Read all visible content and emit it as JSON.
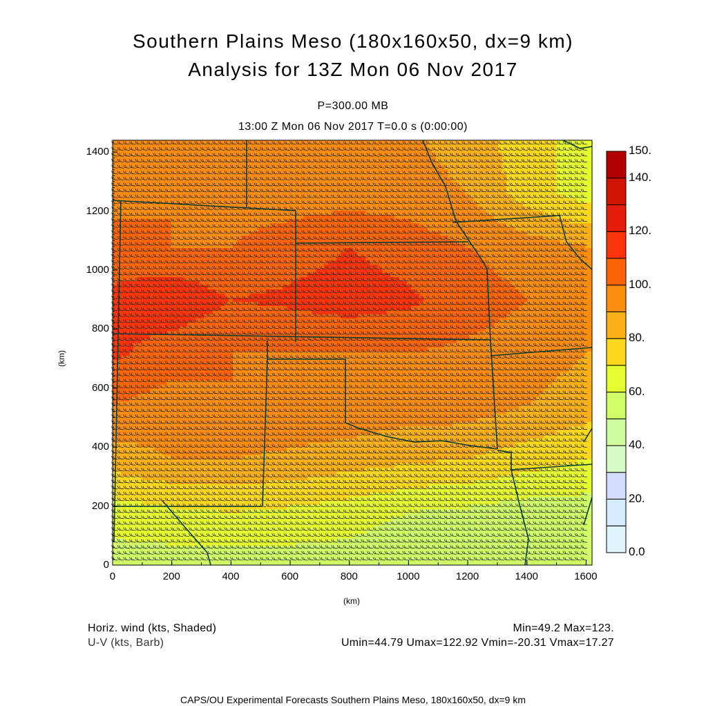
{
  "title": {
    "line1": "Southern Plains Meso (180x160x50, dx=9 km)",
    "line2": "Analysis for 13Z Mon 06 Nov 2017",
    "level": "P=300.00 MB",
    "time": "13:00 Z Mon 06 Nov 2017    T=0.0 s (0:00:00)"
  },
  "axes": {
    "xlabel": "(km)",
    "ylabel": "(km)",
    "xticks": [
      "0",
      "200",
      "400",
      "600",
      "800",
      "1000",
      "1200",
      "1400",
      "1600"
    ],
    "yticks": [
      "0",
      "200",
      "400",
      "600",
      "800",
      "1000",
      "1200",
      "1400"
    ],
    "xrange": [
      0,
      1620
    ],
    "yrange": [
      0,
      1440
    ]
  },
  "colorbar": {
    "levels": [
      0,
      10,
      20,
      30,
      40,
      50,
      60,
      70,
      80,
      90,
      100,
      110,
      120,
      130,
      140,
      150
    ],
    "colors": [
      "#e0f4fc",
      "#d4ecfc",
      "#d4dcfc",
      "#d8fcc8",
      "#d0fca0",
      "#d0fc68",
      "#e4fc30",
      "#fcd81c",
      "#fcb018",
      "#fc8c10",
      "#fc6408",
      "#fc340c",
      "#e41c0c",
      "#d01404",
      "#b00000"
    ],
    "labels": [
      {
        "value": 0,
        "text": "0.0"
      },
      {
        "value": 20,
        "text": "20."
      },
      {
        "value": 40,
        "text": "40."
      },
      {
        "value": 60,
        "text": "60."
      },
      {
        "value": 80,
        "text": "80."
      },
      {
        "value": 100,
        "text": "100."
      },
      {
        "value": 120,
        "text": "120."
      },
      {
        "value": 140,
        "text": "140."
      },
      {
        "value": 150,
        "text": "150."
      }
    ]
  },
  "chart_data": {
    "type": "heatmap",
    "title": "Horiz. wind at P=300.00 MB",
    "units": "kts",
    "grid_x_km": [
      0,
      200,
      400,
      600,
      800,
      1000,
      1200,
      1400,
      1600
    ],
    "grid_y_km": [
      0,
      180,
      360,
      540,
      720,
      900,
      1080,
      1260,
      1440
    ],
    "speed_kts_rows_bottom_to_top": [
      [
        55,
        55,
        55,
        55,
        55,
        50,
        50,
        50,
        50
      ],
      [
        65,
        68,
        70,
        68,
        65,
        60,
        58,
        55,
        55
      ],
      [
        85,
        90,
        90,
        88,
        85,
        82,
        80,
        75,
        70
      ],
      [
        100,
        95,
        100,
        98,
        98,
        95,
        95,
        90,
        85
      ],
      [
        112,
        105,
        100,
        100,
        100,
        100,
        98,
        95,
        90
      ],
      [
        112,
        118,
        110,
        112,
        115,
        112,
        105,
        100,
        95
      ],
      [
        105,
        100,
        100,
        105,
        110,
        105,
        100,
        95,
        90
      ],
      [
        95,
        100,
        95,
        95,
        95,
        95,
        90,
        75,
        65
      ],
      [
        95,
        95,
        95,
        95,
        95,
        92,
        85,
        75,
        65
      ]
    ]
  },
  "footer": {
    "shaded": "Horiz. wind (kts, Shaded)",
    "barb": "U-V (kts, Barb)",
    "minmax": "Min=49.2 Max=123.",
    "uv": "Umin=44.79 Umax=122.92 Vmin=-20.31 Vmax=17.27",
    "credit": "CAPS/OU Experimental Forecasts  Southern Plains Meso, 180x160x50, dx=9 km"
  }
}
